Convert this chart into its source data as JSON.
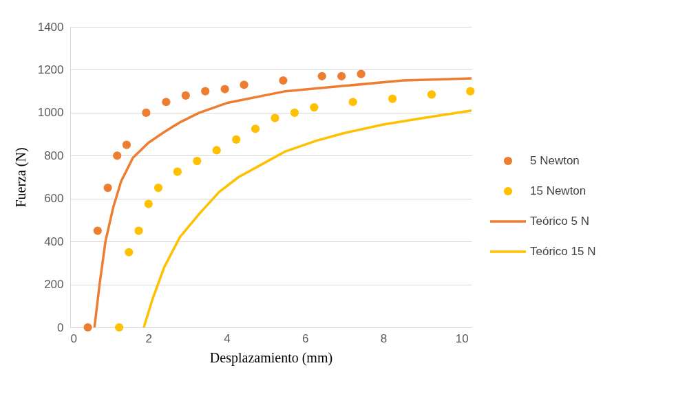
{
  "chart_data": {
    "type": "scatter",
    "xlabel": "Desplazamiento (mm)",
    "ylabel": "Fuerza  (N)",
    "xlim": [
      0,
      10.25
    ],
    "xticks": [
      0,
      2,
      4,
      6,
      8,
      10
    ],
    "ylim": [
      0,
      1400
    ],
    "yticks": [
      0,
      200,
      400,
      600,
      800,
      1000,
      1200,
      1400
    ],
    "grid": "y",
    "legend": "right",
    "series": [
      {
        "name": "5 Newton",
        "marker": "circle",
        "color": "#ed7d31",
        "x": [
          0.45,
          0.7,
          0.96,
          1.2,
          1.44,
          1.94,
          2.45,
          2.95,
          3.45,
          3.95,
          4.44,
          5.44,
          6.43,
          6.93,
          7.43
        ],
        "values": [
          0,
          450,
          650,
          800,
          850,
          1000,
          1050,
          1080,
          1100,
          1110,
          1130,
          1150,
          1170,
          1170,
          1180
        ]
      },
      {
        "name": "15 Newton",
        "marker": "circle",
        "color": "#ffc000",
        "x": [
          1.25,
          1.5,
          1.75,
          2.0,
          2.25,
          2.74,
          3.24,
          3.74,
          4.24,
          4.73,
          5.23,
          5.73,
          6.23,
          7.22,
          8.23,
          9.23,
          10.22
        ],
        "values": [
          0,
          350,
          450,
          575,
          650,
          725,
          775,
          825,
          875,
          925,
          975,
          1000,
          1025,
          1050,
          1065,
          1085,
          1100
        ]
      },
      {
        "name": "Teórico 5 N",
        "type": "line",
        "line_style": "solid",
        "color": "#ed7d31",
        "x": [
          0.62,
          0.75,
          0.9,
          1.1,
          1.3,
          1.6,
          2.0,
          2.4,
          2.8,
          3.3,
          4.0,
          5.5,
          7.0,
          8.5,
          10.25
        ],
        "values": [
          0,
          200,
          400,
          560,
          680,
          790,
          860,
          910,
          955,
          1000,
          1045,
          1100,
          1125,
          1150,
          1160
        ]
      },
      {
        "name": "Teórico 15 N",
        "type": "line",
        "line_style": "solid",
        "color": "#ffc000",
        "x": [
          1.88,
          2.1,
          2.4,
          2.8,
          3.3,
          3.8,
          4.3,
          5.0,
          5.5,
          6.3,
          7.0,
          8.0,
          9.0,
          10.25
        ],
        "values": [
          0,
          130,
          280,
          420,
          530,
          630,
          700,
          770,
          820,
          870,
          905,
          945,
          975,
          1010
        ]
      }
    ]
  }
}
